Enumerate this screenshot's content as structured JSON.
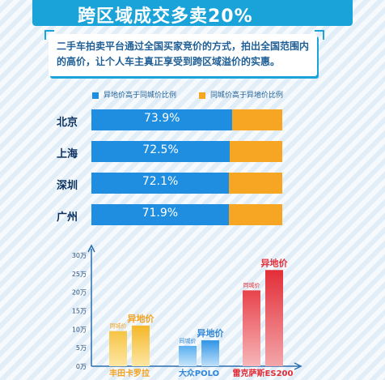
{
  "title": "跨区域成交多卖20%",
  "description": "二手车拍卖平台通过全国买家竞价的方式，拍出全国范围内的高价，让个人车主真正享受到跨区域溢价的实惠。",
  "colors": {
    "blue": "#1f8ee0",
    "orange": "#f6a623",
    "red": "#e8434c"
  },
  "legend": {
    "remote_higher": "异地价高于同城价比例",
    "local_higher": "同城价高于异地价比例"
  },
  "chart_data": [
    {
      "type": "bar",
      "orientation": "horizontal-stacked",
      "categories": [
        "北京",
        "上海",
        "深圳",
        "广州"
      ],
      "series": [
        {
          "name": "异地价高于同城价比例",
          "values": [
            73.9,
            72.5,
            72.1,
            71.9
          ],
          "labels": [
            "73.9%",
            "72.5%",
            "72.1%",
            "71.9%"
          ]
        },
        {
          "name": "同城价高于异地价比例",
          "values": [
            26.1,
            27.5,
            27.9,
            28.1
          ]
        }
      ]
    },
    {
      "type": "bar",
      "categories": [
        "丰田卡罗拉",
        "大众POLO",
        "雷克萨斯ES200"
      ],
      "series": [
        {
          "name": "同城价",
          "values": [
            9.5,
            5.5,
            20.5
          ]
        },
        {
          "name": "异地价",
          "values": [
            11,
            7,
            26
          ]
        }
      ],
      "ylim": [
        0,
        30
      ],
      "ytick_labels": [
        "0万",
        "5万",
        "10万",
        "15万",
        "20万",
        "25万",
        "30万"
      ],
      "ytick_values": [
        0,
        5,
        10,
        15,
        20,
        25,
        30
      ],
      "bar_labels": {
        "local": "同城价",
        "remote": "异地价"
      }
    }
  ]
}
